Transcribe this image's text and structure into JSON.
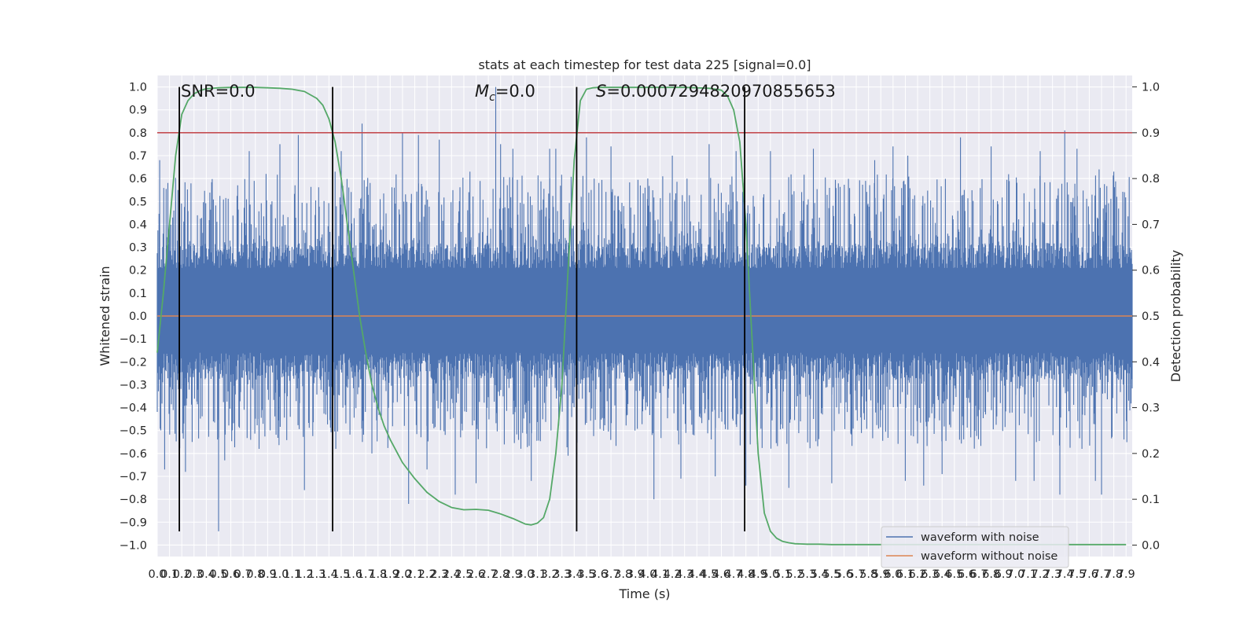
{
  "chart_data": {
    "type": "line",
    "title": "stats at each timestep for test data 225 [signal=0.0]",
    "xlabel": "Time (s)",
    "ylabel_left": "Whitened strain",
    "ylabel_right": "Detection probability",
    "xlim": [
      0.0,
      7.95
    ],
    "ylim_left": [
      -1.05,
      1.05
    ],
    "ylim_right": [
      -0.025,
      1.025
    ],
    "x_ticks": [
      0.0,
      0.1,
      0.2,
      0.3,
      0.4,
      0.5,
      0.6,
      0.7,
      0.8,
      0.9,
      1.0,
      1.1,
      1.2,
      1.3,
      1.4,
      1.5,
      1.6,
      1.7,
      1.8,
      1.9,
      2.0,
      2.1,
      2.2,
      2.3,
      2.4,
      2.5,
      2.6,
      2.7,
      2.8,
      2.9,
      3.0,
      3.1,
      3.2,
      3.3,
      3.4,
      3.5,
      3.6,
      3.7,
      3.8,
      3.9,
      4.0,
      4.1,
      4.2,
      4.3,
      4.4,
      4.5,
      4.6,
      4.7,
      4.8,
      4.9,
      5.0,
      5.1,
      5.2,
      5.3,
      5.4,
      5.5,
      5.6,
      5.7,
      5.8,
      5.9,
      6.0,
      6.1,
      6.2,
      6.3,
      6.4,
      6.5,
      6.6,
      6.7,
      6.8,
      6.9,
      7.0,
      7.1,
      7.2,
      7.3,
      7.4,
      7.5,
      7.6,
      7.7,
      7.8,
      7.9
    ],
    "y_ticks_left": [
      -1.0,
      -0.9,
      -0.8,
      -0.7,
      -0.6,
      -0.5,
      -0.4,
      -0.3,
      -0.2,
      -0.1,
      0.0,
      0.1,
      0.2,
      0.3,
      0.4,
      0.5,
      0.6,
      0.7,
      0.8,
      0.9,
      1.0
    ],
    "y_ticks_right": [
      0.0,
      0.1,
      0.2,
      0.3,
      0.4,
      0.5,
      0.6,
      0.7,
      0.8,
      0.9,
      1.0
    ],
    "grid": true,
    "legend_position": "lower right",
    "annotations": {
      "snr": "SNR=0.0",
      "mc_symbol": "M",
      "mc_subscript": "c",
      "mc_value": "=0.0",
      "s_symbol": "S",
      "s_value": "=0.0007294820970855653"
    },
    "vertical_markers_x": [
      0.18,
      1.43,
      3.42,
      4.79
    ],
    "threshold_right": 0.9,
    "series": [
      {
        "name": "waveform with noise",
        "color": "#4c72b0",
        "style": "noise",
        "spike_x": [
          0.02,
          0.06,
          0.15,
          0.23,
          0.5,
          0.55,
          0.75,
          0.83,
          1.0,
          1.15,
          1.16,
          1.2,
          1.45,
          1.5,
          1.67,
          1.75,
          2.0,
          2.05,
          2.13,
          2.2,
          2.3,
          2.43,
          2.55,
          2.6,
          2.76,
          2.8,
          2.9,
          3.05,
          3.2,
          3.25,
          3.35,
          3.5,
          3.7,
          4.0,
          4.05,
          4.2,
          4.27,
          4.5,
          4.55,
          4.72,
          4.8,
          5.0,
          5.15,
          5.35,
          5.5,
          5.85,
          6.0,
          6.1,
          6.12,
          6.25,
          6.4,
          6.55,
          6.8,
          7.0,
          7.15,
          7.2,
          7.36,
          7.4,
          7.5,
          7.65,
          7.68,
          7.7,
          7.8
        ],
        "spike_y": [
          0.68,
          -0.67,
          0.5,
          -0.68,
          -0.94,
          -0.63,
          0.72,
          -0.58,
          0.75,
          0.79,
          -0.38,
          -0.76,
          0.63,
          0.72,
          0.84,
          -0.6,
          0.8,
          -0.82,
          0.79,
          -0.67,
          0.77,
          -0.78,
          0.63,
          -0.73,
          1.0,
          0.75,
          0.73,
          -0.72,
          0.73,
          0.73,
          -0.61,
          0.78,
          0.74,
          0.6,
          -0.8,
          0.7,
          -0.71,
          0.75,
          -0.7,
          0.72,
          -0.74,
          0.72,
          -0.75,
          0.73,
          -0.73,
          0.68,
          0.74,
          -0.72,
          0.7,
          -0.74,
          -0.69,
          0.78,
          0.74,
          -0.72,
          -0.72,
          0.72,
          -0.78,
          0.81,
          0.73,
          -0.72,
          0.64,
          -0.78,
          0.63
        ]
      },
      {
        "name": "waveform without noise",
        "color": "#dd8452",
        "x": [
          0.0,
          7.95
        ],
        "y": [
          0.0,
          0.0
        ]
      },
      {
        "name": "Detection probability",
        "color": "#55a868",
        "axis": "right",
        "x": [
          0.0,
          0.05,
          0.1,
          0.15,
          0.2,
          0.25,
          0.3,
          0.35,
          0.4,
          0.5,
          0.6,
          0.7,
          0.8,
          0.9,
          1.0,
          1.1,
          1.2,
          1.3,
          1.35,
          1.4,
          1.45,
          1.5,
          1.55,
          1.6,
          1.65,
          1.7,
          1.75,
          1.8,
          1.85,
          1.9,
          2.0,
          2.1,
          2.2,
          2.3,
          2.4,
          2.5,
          2.6,
          2.7,
          2.8,
          2.9,
          3.0,
          3.05,
          3.1,
          3.15,
          3.2,
          3.25,
          3.3,
          3.35,
          3.4,
          3.45,
          3.5,
          3.55,
          3.6,
          3.7,
          3.8,
          3.9,
          4.0,
          4.1,
          4.2,
          4.3,
          4.4,
          4.5,
          4.6,
          4.65,
          4.7,
          4.75,
          4.8,
          4.85,
          4.9,
          4.95,
          5.0,
          5.05,
          5.1,
          5.15,
          5.2,
          5.3,
          5.4,
          5.5,
          6.0,
          6.5,
          7.0,
          7.5,
          7.9
        ],
        "y": [
          0.42,
          0.55,
          0.7,
          0.85,
          0.94,
          0.97,
          0.985,
          0.992,
          0.996,
          0.998,
          0.999,
          0.999,
          0.999,
          0.998,
          0.997,
          0.995,
          0.99,
          0.975,
          0.96,
          0.93,
          0.88,
          0.8,
          0.7,
          0.6,
          0.5,
          0.42,
          0.35,
          0.3,
          0.26,
          0.23,
          0.18,
          0.145,
          0.115,
          0.095,
          0.082,
          0.077,
          0.078,
          0.076,
          0.068,
          0.058,
          0.046,
          0.044,
          0.048,
          0.06,
          0.1,
          0.2,
          0.35,
          0.6,
          0.84,
          0.97,
          0.995,
          0.998,
          0.999,
          0.999,
          0.999,
          0.999,
          0.999,
          0.999,
          0.999,
          0.999,
          0.998,
          0.997,
          0.993,
          0.98,
          0.95,
          0.88,
          0.7,
          0.45,
          0.2,
          0.07,
          0.03,
          0.015,
          0.008,
          0.005,
          0.003,
          0.002,
          0.002,
          0.001,
          0.001,
          0.001,
          0.001,
          0.001,
          0.001
        ]
      }
    ]
  }
}
